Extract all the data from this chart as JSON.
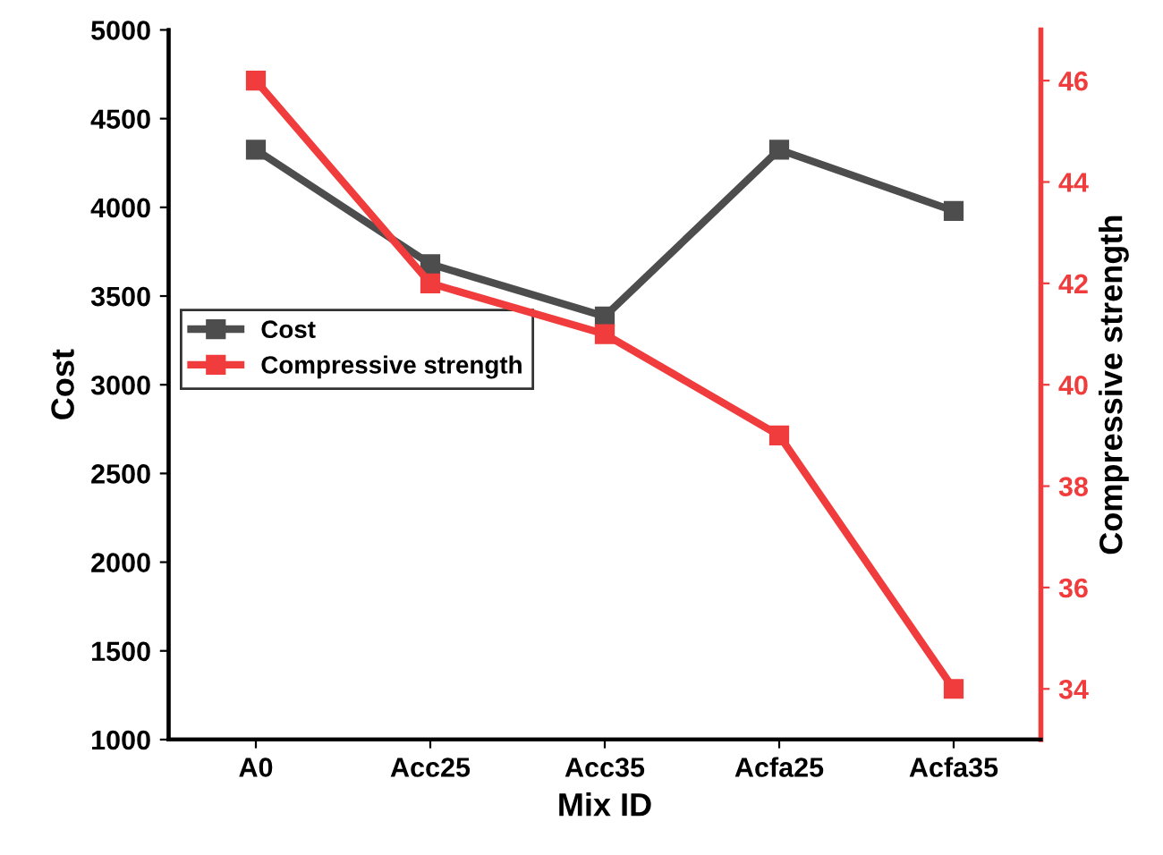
{
  "chart_data": {
    "type": "line",
    "xlabel": "Mix ID",
    "ylabel": "Cost",
    "y2label": "Compressive strength",
    "categories": [
      "A0",
      "Acc25",
      "Acc35",
      "Acfa25",
      "Acfa35"
    ],
    "series": [
      {
        "name": "Cost",
        "color": "#4d4d4d",
        "values": [
          4325,
          3680,
          3385,
          4325,
          3980
        ]
      },
      {
        "name": "Compressive strength",
        "color": "#f03c3c",
        "axis": "y2",
        "values": [
          46,
          42,
          41,
          39,
          34
        ]
      }
    ],
    "ylim": [
      1000,
      5000
    ],
    "yticks": [
      1000,
      1500,
      2000,
      2500,
      3000,
      3500,
      4000,
      4500,
      5000
    ],
    "y2lim": [
      33,
      47
    ],
    "y2ticks": [
      34,
      36,
      38,
      40,
      42,
      44,
      46
    ],
    "marker": "square",
    "line_style": "solid",
    "grid": false,
    "legend": "left"
  }
}
